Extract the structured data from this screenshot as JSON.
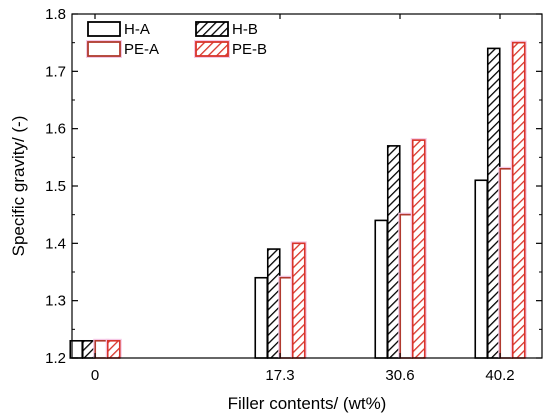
{
  "chart_data": {
    "type": "bar",
    "title": "",
    "xlabel": "Filler contents/ (wt%)",
    "ylabel": "Specific gravity/ (-)",
    "ylim": [
      1.2,
      1.8
    ],
    "yticks": [
      "1.2",
      "1.3",
      "1.4",
      "1.5",
      "1.6",
      "1.7",
      "1.8"
    ],
    "categories": [
      "0",
      "17.3",
      "30.6",
      "40.2"
    ],
    "grid": false,
    "legend_position": "top-left",
    "series": [
      {
        "name": "H-A",
        "values": [
          1.23,
          1.34,
          1.44,
          1.51
        ],
        "color": "#000000",
        "hatched": false
      },
      {
        "name": "H-B",
        "values": [
          1.23,
          1.39,
          1.57,
          1.74
        ],
        "color": "#000000",
        "hatched": true
      },
      {
        "name": "PE-A",
        "values": [
          1.23,
          1.34,
          1.45,
          1.53
        ],
        "color": "#b03a2e",
        "hatched": false
      },
      {
        "name": "PE-B",
        "values": [
          1.23,
          1.4,
          1.58,
          1.75
        ],
        "color": "#d9342b",
        "hatched": true
      }
    ]
  }
}
